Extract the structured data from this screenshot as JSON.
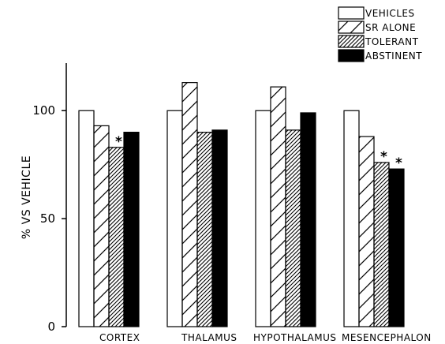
{
  "chart_data": {
    "type": "bar",
    "title": "",
    "xlabel": "",
    "ylabel": "% VS VEHICLE",
    "ylim": [
      0,
      122
    ],
    "yticks": [
      0,
      50,
      100
    ],
    "categories": [
      "CORTEX",
      "THALAMUS",
      "HYPOTHALAMUS",
      "MESENCEPHALON"
    ],
    "series": [
      {
        "name": "VEHICLES",
        "values": [
          100,
          100,
          100,
          100
        ],
        "fill": "open"
      },
      {
        "name": "SR ALONE",
        "values": [
          93,
          113,
          111,
          88
        ],
        "fill": "wide-hatch"
      },
      {
        "name": "TOLERANT",
        "values": [
          83,
          90,
          91,
          76
        ],
        "fill": "dense-hatch"
      },
      {
        "name": "ABSTINENT",
        "values": [
          90,
          91,
          99,
          73
        ],
        "fill": "solid"
      }
    ],
    "significance_markers": [
      {
        "category": "CORTEX",
        "series": "TOLERANT",
        "symbol": "*"
      },
      {
        "category": "MESENCEPHALON",
        "series": "TOLERANT",
        "symbol": "*"
      },
      {
        "category": "MESENCEPHALON",
        "series": "ABSTINENT",
        "symbol": "*"
      }
    ],
    "legend_position": "top-right",
    "grid": false,
    "colors": {
      "stroke": "#000000",
      "background": "#ffffff",
      "solid": "#000000"
    }
  }
}
